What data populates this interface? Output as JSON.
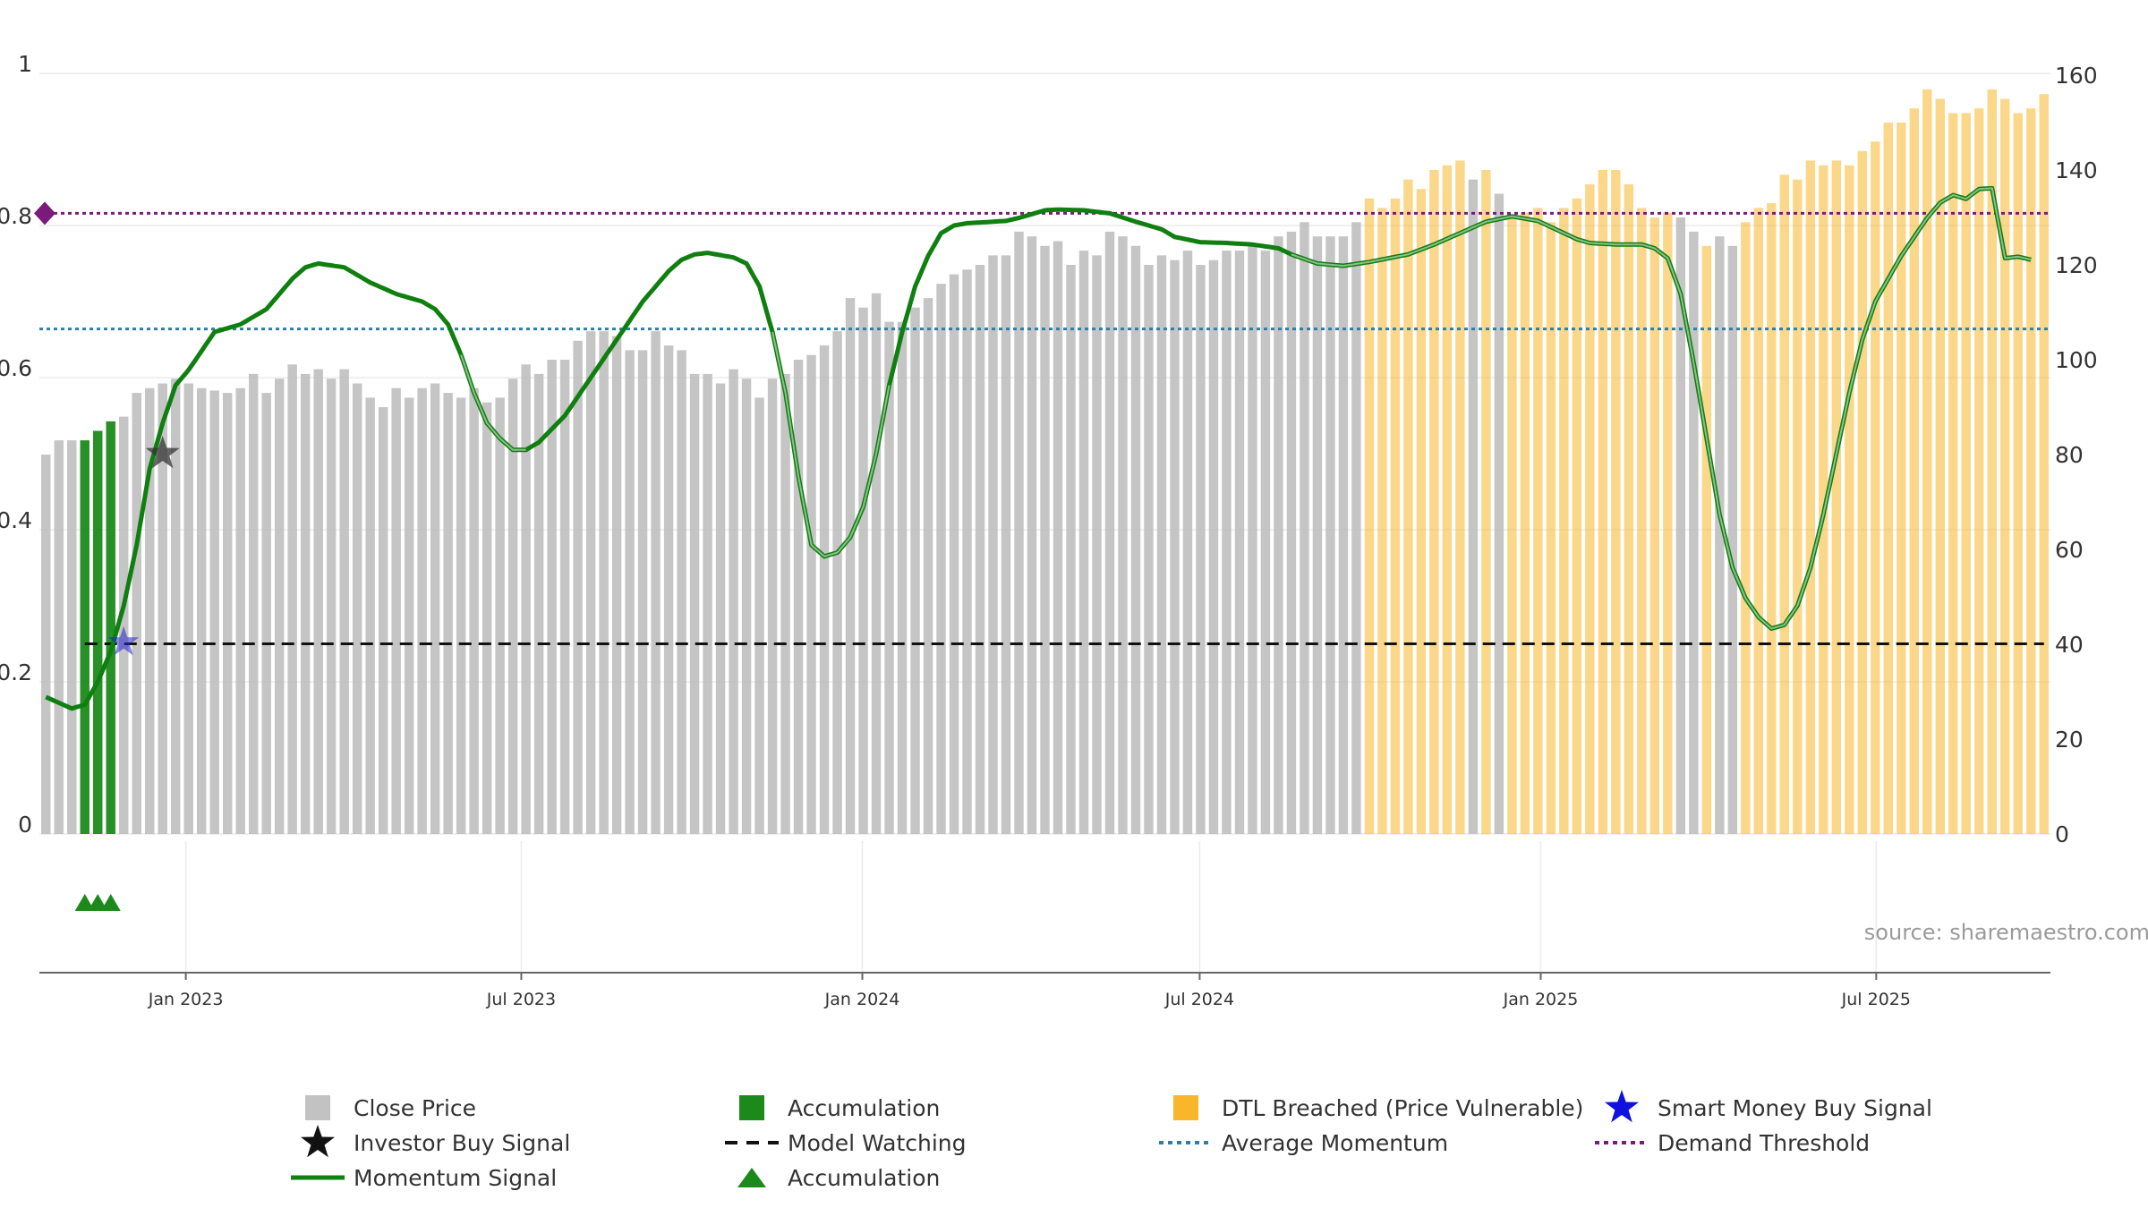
{
  "chart_data": {
    "type": "bar+line",
    "left_axis": {
      "min": 0,
      "max": 1,
      "ticks": [
        0,
        0.2,
        0.4,
        0.6,
        0.8,
        1
      ],
      "tick_labels": [
        "0",
        "0.2",
        "0.4",
        "0.6",
        "0.8",
        "1"
      ]
    },
    "right_axis": {
      "min": 0,
      "max": 160,
      "ticks": [
        0,
        20,
        40,
        60,
        80,
        100,
        120,
        140,
        160
      ],
      "tick_labels": [
        "0",
        "20",
        "40",
        "60",
        "80",
        "100",
        "120",
        "140",
        "160"
      ]
    },
    "x_axis": {
      "start": "2022-10-14",
      "end": "2025-10-10",
      "period_days": 7,
      "ticks": [
        {
          "date": "2023-01-01",
          "label": "Jan 2023"
        },
        {
          "date": "2023-07-01",
          "label": "Jul 2023"
        },
        {
          "date": "2024-01-01",
          "label": "Jan 2024"
        },
        {
          "date": "2024-07-01",
          "label": "Jul 2024"
        },
        {
          "date": "2025-01-01",
          "label": "Jan 2025"
        },
        {
          "date": "2025-07-01",
          "label": "Jul 2025"
        }
      ]
    },
    "close_price_anchors": [
      [
        0,
        80
      ],
      [
        1,
        83
      ],
      [
        3,
        83
      ],
      [
        5,
        87
      ],
      [
        6,
        88
      ],
      [
        7,
        93
      ],
      [
        8,
        94
      ],
      [
        10,
        96
      ],
      [
        12,
        94
      ],
      [
        14,
        93
      ],
      [
        15,
        94
      ],
      [
        16,
        97
      ],
      [
        17,
        93
      ],
      [
        18,
        96
      ],
      [
        19,
        99
      ],
      [
        20,
        97
      ],
      [
        21,
        98
      ],
      [
        22,
        96
      ],
      [
        23,
        98
      ],
      [
        24,
        95
      ],
      [
        25,
        92
      ],
      [
        26,
        90
      ],
      [
        27,
        94
      ],
      [
        28,
        92
      ],
      [
        29,
        94
      ],
      [
        30,
        95
      ],
      [
        31,
        93
      ],
      [
        32,
        92
      ],
      [
        33,
        94
      ],
      [
        34,
        91
      ],
      [
        35,
        92
      ],
      [
        36,
        96
      ],
      [
        37,
        99
      ],
      [
        38,
        97
      ],
      [
        39,
        100
      ],
      [
        40,
        100
      ],
      [
        41,
        104
      ],
      [
        42,
        106
      ],
      [
        43,
        106
      ],
      [
        44,
        105
      ],
      [
        45,
        102
      ],
      [
        46,
        102
      ],
      [
        47,
        106
      ],
      [
        48,
        103
      ],
      [
        49,
        102
      ],
      [
        50,
        97
      ],
      [
        51,
        97
      ],
      [
        52,
        95
      ],
      [
        53,
        98
      ],
      [
        54,
        96
      ],
      [
        55,
        92
      ],
      [
        56,
        96
      ],
      [
        57,
        97
      ],
      [
        58,
        100
      ],
      [
        59,
        101
      ],
      [
        60,
        103
      ],
      [
        61,
        106
      ],
      [
        62,
        113
      ],
      [
        63,
        111
      ],
      [
        64,
        114
      ],
      [
        65,
        108
      ],
      [
        66,
        108
      ],
      [
        67,
        111
      ],
      [
        68,
        113
      ],
      [
        69,
        116
      ],
      [
        70,
        118
      ],
      [
        71,
        119
      ],
      [
        72,
        120
      ],
      [
        73,
        122
      ],
      [
        74,
        122
      ],
      [
        75,
        127
      ],
      [
        76,
        126
      ],
      [
        77,
        124
      ],
      [
        78,
        125
      ],
      [
        79,
        120
      ],
      [
        80,
        123
      ],
      [
        81,
        122
      ],
      [
        82,
        127
      ],
      [
        83,
        126
      ],
      [
        84,
        124
      ],
      [
        85,
        120
      ],
      [
        86,
        122
      ],
      [
        87,
        121
      ],
      [
        88,
        123
      ],
      [
        89,
        120
      ],
      [
        90,
        121
      ],
      [
        91,
        123
      ],
      [
        92,
        123
      ],
      [
        93,
        124
      ],
      [
        94,
        123
      ],
      [
        95,
        126
      ],
      [
        96,
        127
      ],
      [
        97,
        129
      ],
      [
        98,
        126
      ],
      [
        99,
        126
      ],
      [
        100,
        126
      ],
      [
        101,
        129
      ],
      [
        102,
        134
      ],
      [
        103,
        132
      ],
      [
        104,
        134
      ],
      [
        105,
        138
      ],
      [
        106,
        136
      ],
      [
        107,
        140
      ],
      [
        108,
        141
      ],
      [
        109,
        142
      ],
      [
        110,
        138
      ],
      [
        111,
        140
      ],
      [
        112,
        135
      ],
      [
        113,
        130
      ],
      [
        114,
        131
      ],
      [
        115,
        132
      ],
      [
        116,
        129
      ],
      [
        117,
        132
      ],
      [
        118,
        134
      ],
      [
        119,
        137
      ],
      [
        120,
        140
      ],
      [
        121,
        140
      ],
      [
        122,
        137
      ],
      [
        123,
        132
      ],
      [
        124,
        130
      ],
      [
        125,
        131
      ],
      [
        126,
        130
      ],
      [
        127,
        127
      ],
      [
        128,
        124
      ],
      [
        129,
        126
      ],
      [
        130,
        124
      ],
      [
        131,
        129
      ],
      [
        132,
        132
      ],
      [
        133,
        133
      ],
      [
        134,
        139
      ],
      [
        135,
        138
      ],
      [
        136,
        142
      ],
      [
        137,
        141
      ],
      [
        138,
        142
      ],
      [
        139,
        141
      ],
      [
        140,
        144
      ],
      [
        141,
        146
      ],
      [
        142,
        150
      ],
      [
        143,
        150
      ],
      [
        144,
        153
      ],
      [
        145,
        157
      ],
      [
        146,
        155
      ],
      [
        147,
        152
      ],
      [
        148,
        152
      ],
      [
        149,
        153
      ],
      [
        150,
        157
      ],
      [
        151,
        155
      ],
      [
        152,
        152
      ],
      [
        153,
        153
      ],
      [
        154,
        156
      ]
    ],
    "accumulation_weeks": [
      3,
      4,
      5
    ],
    "dtl_breached_weeks": [
      [
        102,
        109
      ],
      [
        111,
        111
      ],
      [
        113,
        125
      ],
      [
        128,
        128
      ],
      [
        131,
        154
      ]
    ],
    "momentum_anchors": [
      [
        0,
        0.18
      ],
      [
        2,
        0.165
      ],
      [
        3,
        0.17
      ],
      [
        4,
        0.2
      ],
      [
        5,
        0.24
      ],
      [
        6,
        0.3
      ],
      [
        7,
        0.38
      ],
      [
        8,
        0.48
      ],
      [
        9,
        0.54
      ],
      [
        10,
        0.59
      ],
      [
        11,
        0.61
      ],
      [
        12,
        0.635
      ],
      [
        13,
        0.66
      ],
      [
        14,
        0.665
      ],
      [
        15,
        0.67
      ],
      [
        17,
        0.69
      ],
      [
        18,
        0.71
      ],
      [
        19,
        0.73
      ],
      [
        20,
        0.745
      ],
      [
        21,
        0.75
      ],
      [
        23,
        0.745
      ],
      [
        25,
        0.725
      ],
      [
        27,
        0.71
      ],
      [
        29,
        0.7
      ],
      [
        30,
        0.69
      ],
      [
        31,
        0.67
      ],
      [
        32,
        0.63
      ],
      [
        33,
        0.58
      ],
      [
        34,
        0.54
      ],
      [
        35,
        0.52
      ],
      [
        36,
        0.505
      ],
      [
        37,
        0.505
      ],
      [
        38,
        0.515
      ],
      [
        40,
        0.55
      ],
      [
        42,
        0.6
      ],
      [
        44,
        0.65
      ],
      [
        46,
        0.7
      ],
      [
        48,
        0.74
      ],
      [
        49,
        0.755
      ],
      [
        50,
        0.762
      ],
      [
        51,
        0.764
      ],
      [
        53,
        0.758
      ],
      [
        54,
        0.75
      ],
      [
        55,
        0.72
      ],
      [
        56,
        0.66
      ],
      [
        57,
        0.58
      ],
      [
        58,
        0.47
      ],
      [
        59,
        0.38
      ],
      [
        60,
        0.365
      ],
      [
        61,
        0.37
      ],
      [
        62,
        0.39
      ],
      [
        63,
        0.43
      ],
      [
        64,
        0.5
      ],
      [
        65,
        0.59
      ],
      [
        66,
        0.66
      ],
      [
        67,
        0.72
      ],
      [
        68,
        0.76
      ],
      [
        69,
        0.79
      ],
      [
        70,
        0.8
      ],
      [
        71,
        0.803
      ],
      [
        73,
        0.805
      ],
      [
        74,
        0.806
      ],
      [
        75,
        0.81
      ],
      [
        76,
        0.815
      ],
      [
        77,
        0.82
      ],
      [
        78,
        0.821
      ],
      [
        80,
        0.82
      ],
      [
        82,
        0.816
      ],
      [
        84,
        0.805
      ],
      [
        86,
        0.795
      ],
      [
        87,
        0.785
      ],
      [
        89,
        0.778
      ],
      [
        91,
        0.777
      ],
      [
        93,
        0.775
      ],
      [
        95,
        0.77
      ],
      [
        96,
        0.762
      ],
      [
        98,
        0.75
      ],
      [
        100,
        0.747
      ],
      [
        102,
        0.752
      ],
      [
        105,
        0.762
      ],
      [
        107,
        0.775
      ],
      [
        109,
        0.79
      ],
      [
        111,
        0.805
      ],
      [
        113,
        0.812
      ],
      [
        115,
        0.806
      ],
      [
        117,
        0.79
      ],
      [
        118,
        0.782
      ],
      [
        119,
        0.777
      ],
      [
        121,
        0.775
      ],
      [
        123,
        0.775
      ],
      [
        124,
        0.77
      ],
      [
        125,
        0.757
      ],
      [
        126,
        0.71
      ],
      [
        127,
        0.62
      ],
      [
        128,
        0.52
      ],
      [
        129,
        0.42
      ],
      [
        130,
        0.35
      ],
      [
        131,
        0.31
      ],
      [
        132,
        0.285
      ],
      [
        133,
        0.27
      ],
      [
        134,
        0.275
      ],
      [
        135,
        0.3
      ],
      [
        136,
        0.35
      ],
      [
        137,
        0.42
      ],
      [
        138,
        0.5
      ],
      [
        139,
        0.58
      ],
      [
        140,
        0.65
      ],
      [
        141,
        0.7
      ],
      [
        142,
        0.73
      ],
      [
        143,
        0.76
      ],
      [
        144,
        0.785
      ],
      [
        145,
        0.81
      ],
      [
        146,
        0.83
      ],
      [
        147,
        0.84
      ],
      [
        148,
        0.835
      ],
      [
        149,
        0.848
      ],
      [
        150,
        0.849
      ],
      [
        151,
        0.757
      ],
      [
        152,
        0.759
      ],
      [
        153,
        0.755
      ]
    ],
    "momentum_light_weeks": [
      [
        32,
        37
      ],
      [
        56,
        65
      ],
      [
        96,
        154
      ]
    ],
    "average_momentum": 0.664,
    "demand_threshold": 0.816,
    "model_watching": 0.25,
    "investor_buy_signal": {
      "week": 9,
      "value": 0.5
    },
    "smart_money_buy_signal": {
      "week": 6,
      "value": 0.252
    },
    "accumulation_triangles_weeks": [
      3,
      4,
      5
    ],
    "source": "source: sharemaestro.com",
    "legend": [
      {
        "key": "close",
        "label": "Close Price",
        "color": "#bbbbbb"
      },
      {
        "key": "accum_bar",
        "label": "Accumulation",
        "color": "#1b8a1b"
      },
      {
        "key": "dtl",
        "label": "DTL Breached (Price Vulnerable)",
        "color": "#f8b62a"
      },
      {
        "key": "smart",
        "label": "Smart Money Buy Signal",
        "color": "#1010e0"
      },
      {
        "key": "investor",
        "label": "Investor Buy Signal",
        "color": "#111111"
      },
      {
        "key": "watch",
        "label": "Model Watching",
        "color": "#111111"
      },
      {
        "key": "avg",
        "label": "Average Momentum",
        "color": "#2c7fa8"
      },
      {
        "key": "demand",
        "label": "Demand Threshold",
        "color": "#7a1a7a"
      },
      {
        "key": "momentum",
        "label": "Momentum Signal",
        "color": "#118011"
      },
      {
        "key": "accum_tri",
        "label": "Accumulation",
        "color": "#1b8a1b"
      }
    ],
    "colors": {
      "close": "#bbbbbb",
      "accumulation": "#1b8a1b",
      "dtl": "#f8b62a",
      "momentum": "#0f7f0f",
      "momentum_light": "#5d9e5d",
      "average": "#2c7fa8",
      "demand": "#7a1a7a",
      "watch": "#111111",
      "smart": "#2222cc",
      "investor": "#333333",
      "grid": "#ebebeb"
    }
  }
}
